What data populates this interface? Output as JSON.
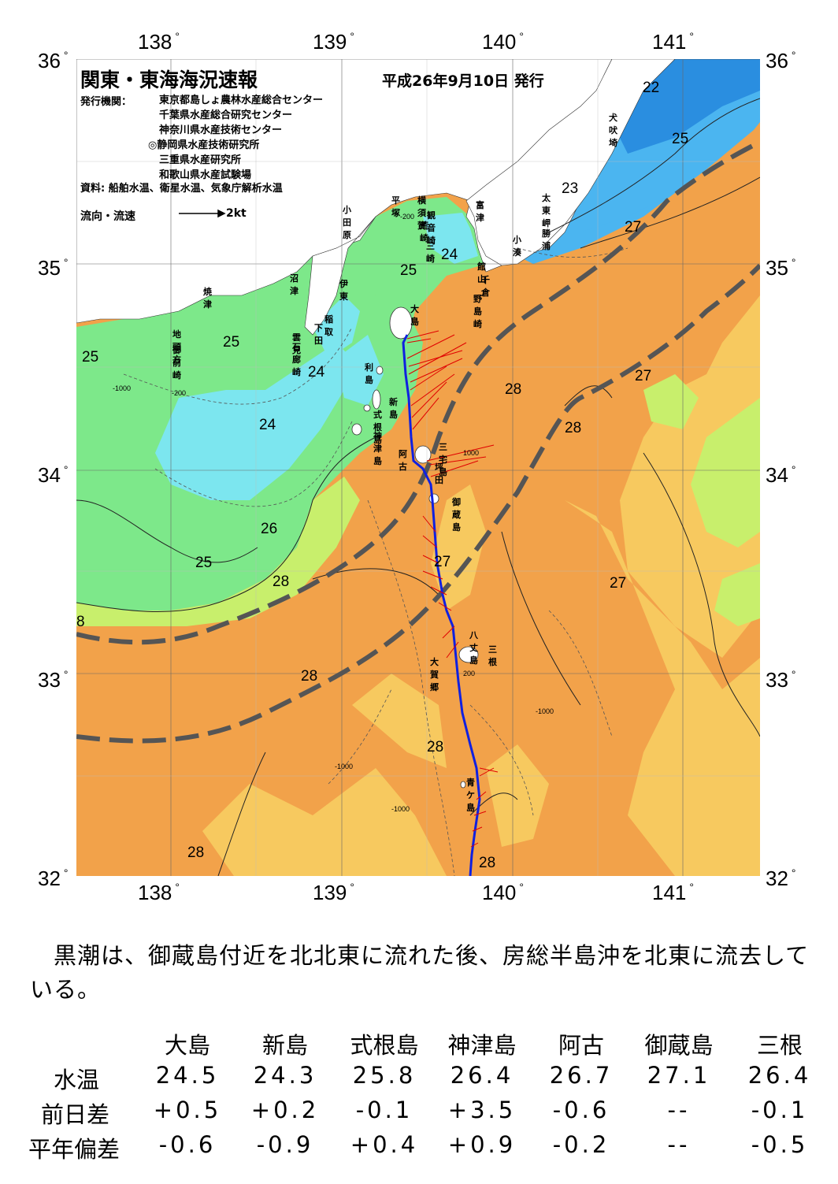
{
  "map": {
    "title": "関東・東海海況速報",
    "date": "平成26年9月10日 発行",
    "publisher_label": "発行機関：",
    "publishers": [
      "東京都島しょ農林水産総合センター",
      "千葉県水産総合研究センター",
      "神奈川県水産技術センター",
      "◎静岡県水産技術研究所",
      "三重県水産研究所",
      "和歌山県水産試験場"
    ],
    "source": "資料: 船舶水温、衛星水温、気象庁解析水温",
    "legend_label": "流向・流速",
    "legend_scale": "2kt",
    "lon_labels": [
      "138",
      "139",
      "140",
      "141"
    ],
    "lat_labels": [
      "36",
      "35",
      "34",
      "33",
      "32"
    ],
    "place_names": [
      "小田原",
      "平塚",
      "横須賀",
      "観音崎",
      "富津",
      "荒崎",
      "三崎",
      "館山",
      "千倉",
      "野島崎",
      "犬吠埼",
      "太東岬",
      "小湊",
      "勝浦",
      "沼津",
      "伊東",
      "焼津",
      "稲取",
      "下田",
      "雲見",
      "石廊崎",
      "地頭方",
      "御前崎",
      "大島",
      "利島",
      "新島",
      "式根島",
      "神津島",
      "三宅島",
      "阿古",
      "坪田",
      "御蔵島",
      "八丈島",
      "三根",
      "大賀郷",
      "青ケ島"
    ],
    "temp_labels": [
      "22",
      "25",
      "23",
      "27",
      "24",
      "25",
      "25",
      "25",
      "24",
      "24",
      "28",
      "28",
      "27",
      "26",
      "25",
      "28",
      "27",
      "27",
      "28",
      "8",
      "28",
      "28",
      "28"
    ],
    "depth_labels": [
      "-200",
      "-1000",
      "1000",
      "200"
    ],
    "colors": {
      "t22": "#2a8ee0",
      "t23": "#4bb5f0",
      "t24": "#7ce6ef",
      "t25": "#7de88a",
      "t26": "#c8ef6c",
      "t27": "#f7c95f",
      "t28": "#f2a24a",
      "t29": "#ea8c2c",
      "land": "#ffffff",
      "track": "#1020e0",
      "current": "#e00000",
      "kuroshio": "#555555"
    }
  },
  "summary": "黒潮は、御蔵島付近を北北東に流れた後、房総半島沖を北東に流去している。",
  "table": {
    "columns": [
      "大島",
      "新島",
      "式根島",
      "神津島",
      "阿古",
      "御蔵島",
      "三根"
    ],
    "rows": [
      {
        "label": "水温",
        "values": [
          "24.5",
          "24.3",
          "25.8",
          "26.4",
          "26.7",
          "27.1",
          "26.4"
        ]
      },
      {
        "label": "前日差",
        "values": [
          "+0.5",
          "+0.2",
          "-0.1",
          "+3.5",
          "-0.6",
          "--",
          "-0.1"
        ]
      },
      {
        "label": "平年偏差",
        "values": [
          "-0.6",
          "-0.9",
          "+0.4",
          "+0.9",
          "-0.2",
          "--",
          "-0.5"
        ]
      }
    ]
  }
}
